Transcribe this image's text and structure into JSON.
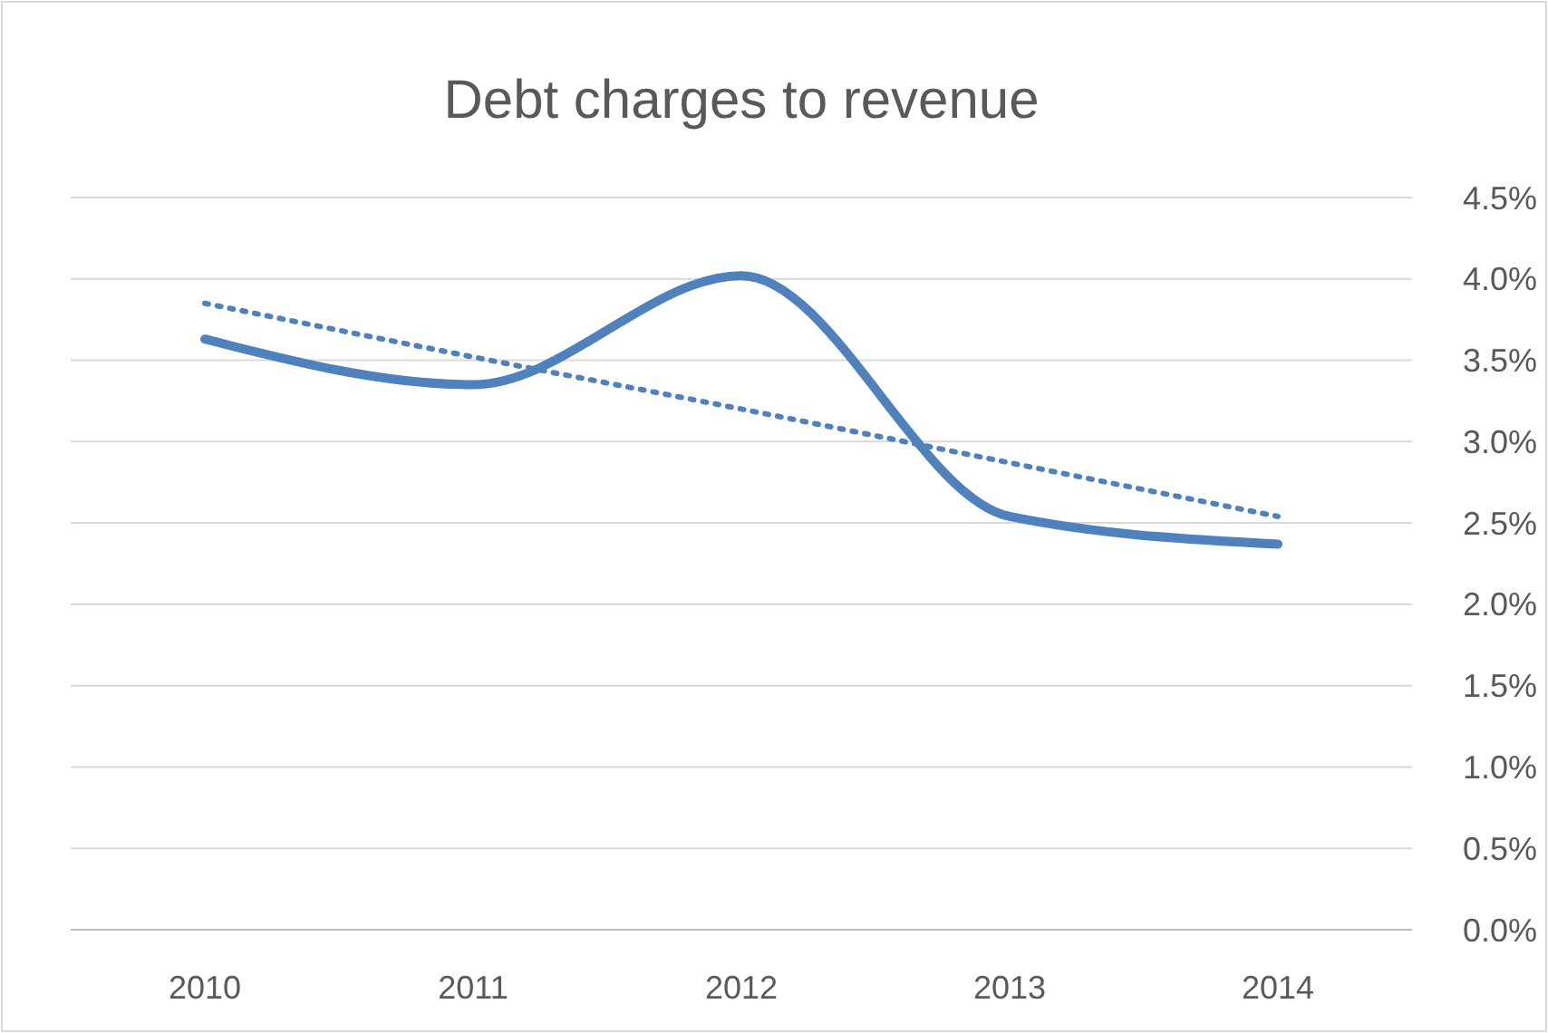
{
  "chart_data": {
    "type": "line",
    "title": "Debt charges to revenue",
    "categories": [
      "2010",
      "2011",
      "2012",
      "2013",
      "2014"
    ],
    "series": [
      {
        "color": "#4f81bd",
        "values": [
          3.63,
          3.35,
          4.02,
          2.54,
          2.37
        ]
      },
      {
        "type": "line",
        "color": "#4f81bd",
        "line_style": "dotted",
        "values": [
          3.85,
          3.52,
          3.2,
          2.87,
          2.54
        ]
      }
    ],
    "ylim": [
      0,
      4.5
    ],
    "yticks": [
      {
        "value": 0,
        "label": "0.0%"
      },
      {
        "value": 0.5,
        "label": "0.5%"
      },
      {
        "value": 1,
        "label": "1.0%"
      },
      {
        "value": 1.5,
        "label": "1.5%"
      },
      {
        "value": 2,
        "label": "2.0%"
      },
      {
        "value": 2.5,
        "label": "2.5%"
      },
      {
        "value": 3,
        "label": "3.0%"
      },
      {
        "value": 3.5,
        "label": "3.5%"
      },
      {
        "value": 4,
        "label": "4.0%"
      },
      {
        "value": 4.5,
        "label": "4.5%"
      }
    ],
    "grid": "y",
    "line_style": "solid"
  }
}
